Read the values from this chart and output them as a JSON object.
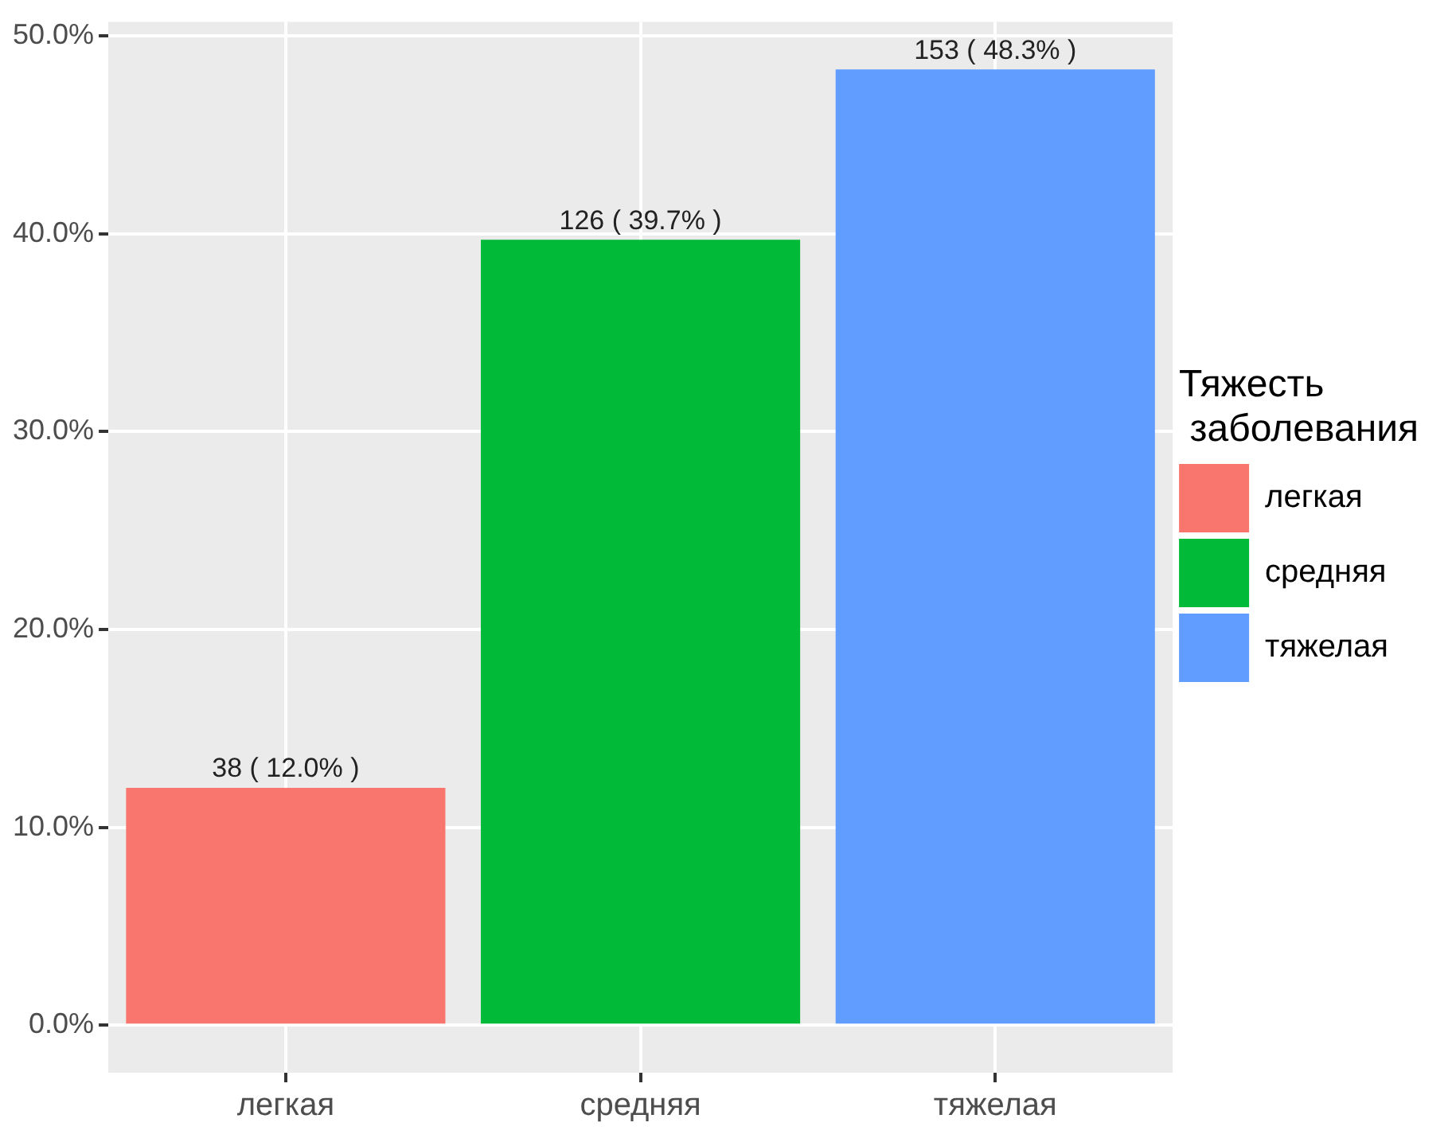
{
  "chart_data": {
    "type": "bar",
    "legend_title": "Тяжесть\n заболевания",
    "categories": [
      "легкая",
      "средняя",
      "тяжелая"
    ],
    "series": [
      {
        "name": "легкая",
        "color": "#f8766d",
        "values": [
          12.0,
          null,
          null
        ],
        "value_labels": [
          "38 ( 12.0% )",
          null,
          null
        ]
      },
      {
        "name": "средняя",
        "color": "#00ba38",
        "values": [
          null,
          39.7,
          null
        ],
        "value_labels": [
          null,
          "126 ( 39.7% )",
          null
        ]
      },
      {
        "name": "тяжелая",
        "color": "#619cff",
        "values": [
          null,
          null,
          48.3
        ],
        "value_labels": [
          null,
          null,
          "153 ( 48.3% )"
        ]
      }
    ],
    "ylim": [
      -2.4,
      50.7
    ],
    "yticks": [
      {
        "value": 0,
        "label": "0.0%"
      },
      {
        "value": 10,
        "label": "10.0%"
      },
      {
        "value": 20,
        "label": "20.0%"
      },
      {
        "value": 30,
        "label": "30.0%"
      },
      {
        "value": 40,
        "label": "40.0%"
      },
      {
        "value": 50,
        "label": "50.0%"
      }
    ],
    "grid": true,
    "legend": "right"
  }
}
